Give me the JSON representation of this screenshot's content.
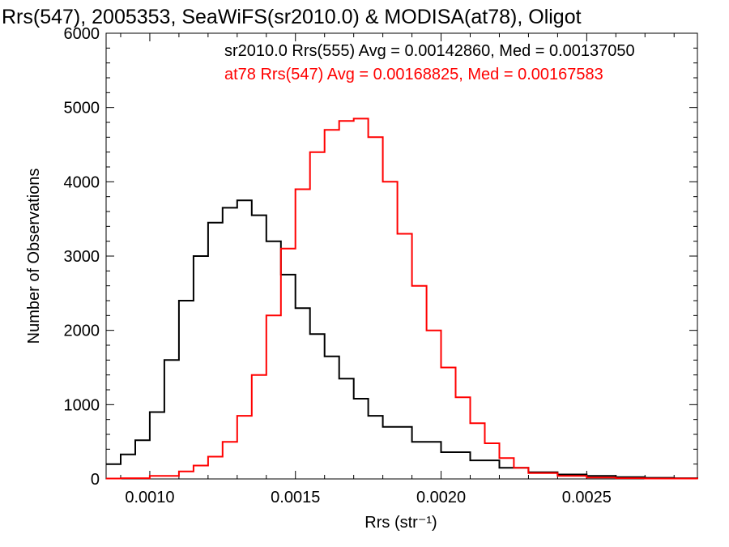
{
  "chart_data": {
    "type": "line",
    "title": "Rrs(547), 2005353, SeaWiFS(sr2010.0) & MODISA(at78), Oligot",
    "xlabel": "Rrs (str⁻¹)",
    "ylabel": "Number of Observations",
    "xlim": [
      0.00085,
      0.00288
    ],
    "ylim": [
      0,
      6000
    ],
    "x_ticks": [
      0.001,
      0.0015,
      0.002,
      0.0025
    ],
    "x_tick_labels": [
      "0.0010",
      "0.0015",
      "0.0020",
      "0.0025"
    ],
    "y_ticks": [
      0,
      1000,
      2000,
      3000,
      4000,
      5000,
      6000
    ],
    "y_tick_labels": [
      "0",
      "1000",
      "2000",
      "3000",
      "4000",
      "5000",
      "6000"
    ],
    "legend_placement": "top-right",
    "annotations": [
      {
        "text": "sr2010.0 Rrs(555) Avg = 0.00142860, Med = 0.00137050",
        "color": "#000000"
      },
      {
        "text": "at78 Rrs(547) Avg = 0.00168825, Med = 0.00167583",
        "color": "#ff0000"
      }
    ],
    "series": [
      {
        "name": "sr2010.0 Rrs(555)",
        "color": "#000000",
        "x": [
          0.00085,
          0.0009,
          0.00095,
          0.001,
          0.00105,
          0.0011,
          0.00115,
          0.0012,
          0.00125,
          0.0013,
          0.00135,
          0.0014,
          0.00145,
          0.0015,
          0.00155,
          0.0016,
          0.00165,
          0.0017,
          0.00175,
          0.0018,
          0.0019,
          0.002,
          0.0021,
          0.0022,
          0.0023,
          0.0024,
          0.0025,
          0.0026,
          0.0027,
          0.0028,
          0.00288
        ],
        "y": [
          200,
          330,
          520,
          900,
          1600,
          2400,
          3000,
          3450,
          3650,
          3750,
          3550,
          3200,
          2750,
          2300,
          1950,
          1650,
          1350,
          1080,
          850,
          700,
          500,
          360,
          250,
          150,
          90,
          60,
          40,
          25,
          15,
          10,
          5
        ]
      },
      {
        "name": "at78 Rrs(547)",
        "color": "#ff0000",
        "x": [
          0.00085,
          0.0009,
          0.001,
          0.0011,
          0.00115,
          0.0012,
          0.00125,
          0.0013,
          0.00135,
          0.0014,
          0.00145,
          0.0015,
          0.00155,
          0.0016,
          0.00165,
          0.0017,
          0.00175,
          0.0018,
          0.00185,
          0.0019,
          0.00195,
          0.002,
          0.00205,
          0.0021,
          0.00215,
          0.0022,
          0.00225,
          0.0023,
          0.0024,
          0.0025,
          0.0026,
          0.0027,
          0.00288
        ],
        "y": [
          5,
          10,
          40,
          100,
          180,
          300,
          500,
          850,
          1400,
          2200,
          3100,
          3900,
          4400,
          4700,
          4820,
          4850,
          4600,
          4000,
          3300,
          2600,
          2000,
          1500,
          1100,
          750,
          480,
          280,
          150,
          80,
          40,
          20,
          10,
          5,
          0
        ]
      }
    ]
  }
}
